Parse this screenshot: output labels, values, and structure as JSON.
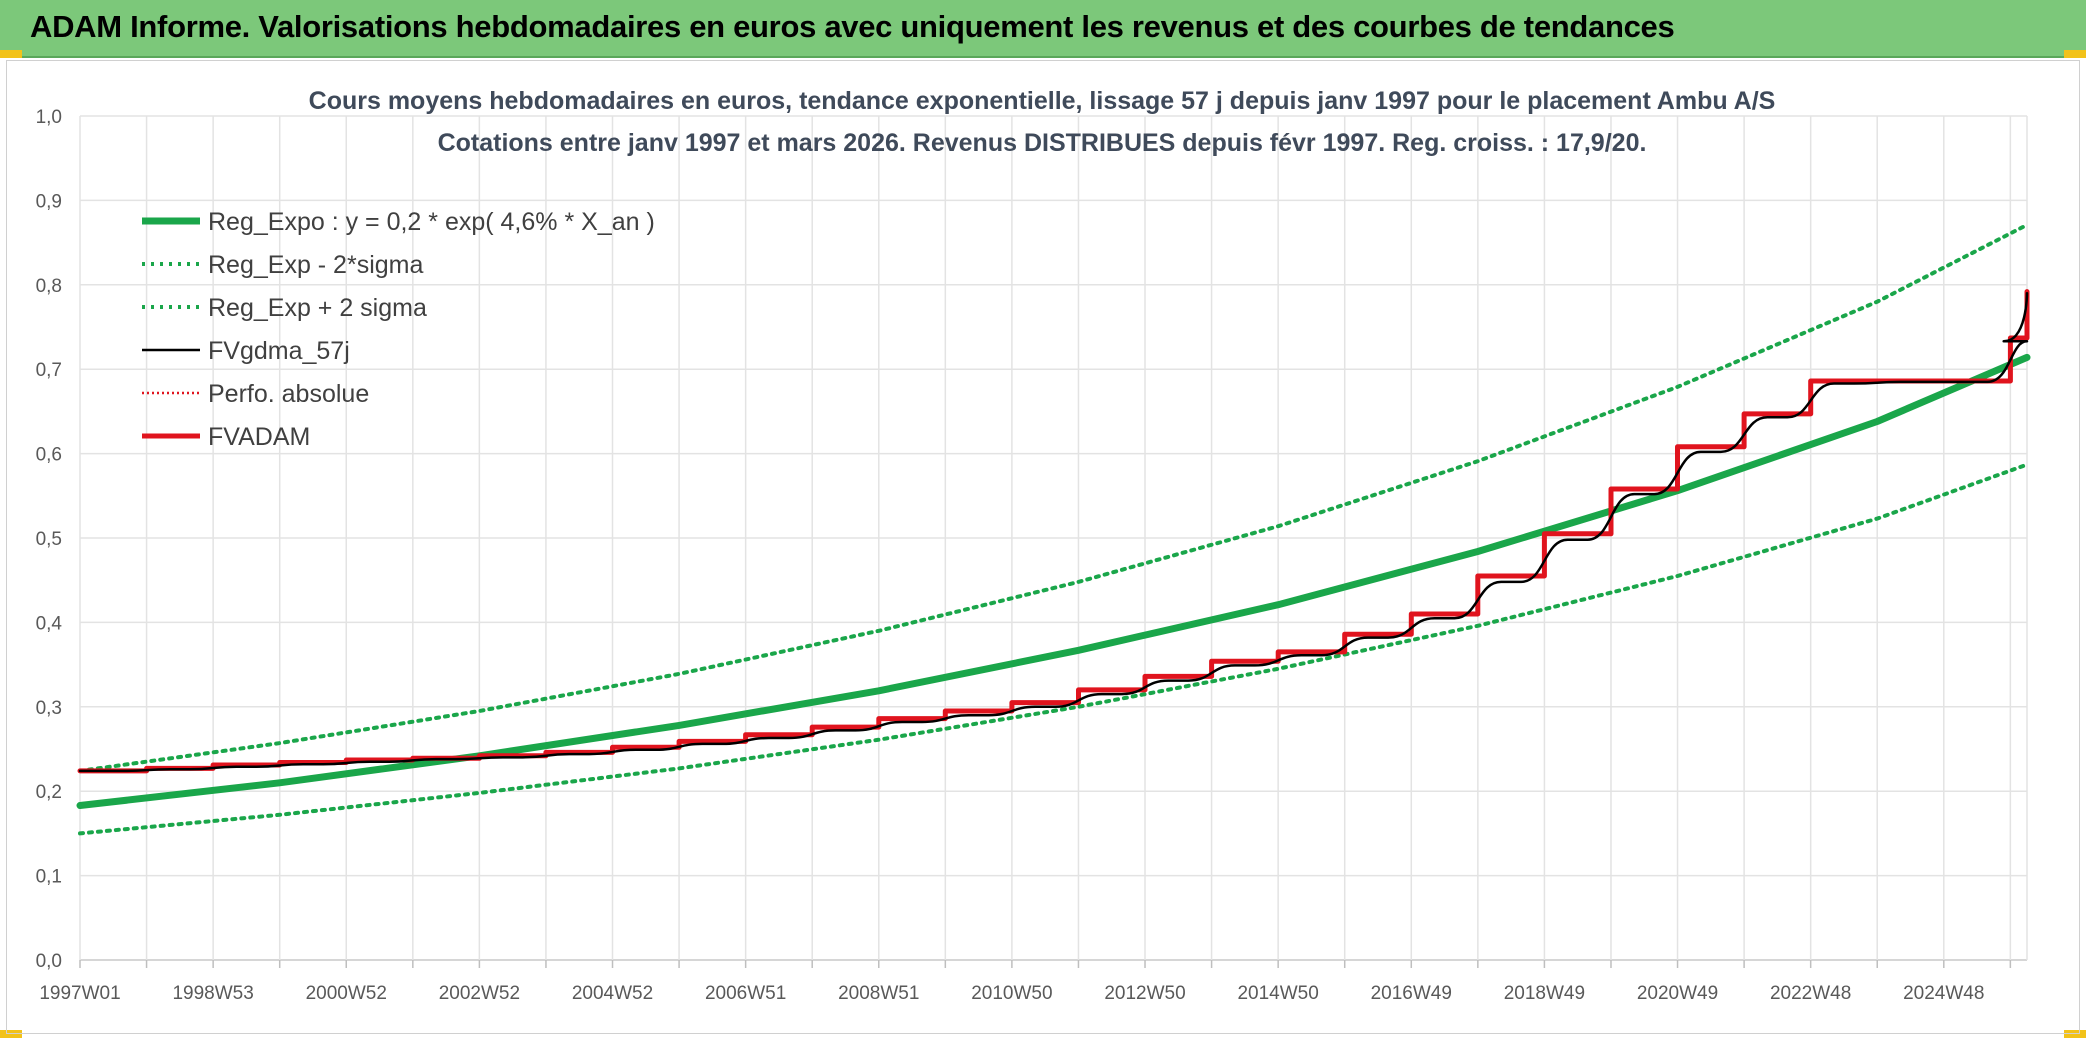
{
  "banner": {
    "title": "ADAM Informe. Valorisations hebdomadaires en euros avec uniquement les revenus et des courbes de tendances"
  },
  "chart_data": {
    "type": "line",
    "title": "Cours moyens hebdomadaires en euros, tendance exponentielle, lissage 57 j depuis janv 1997 pour le placement Ambu A/S",
    "subtitle": "Cotations entre janv 1997 et mars 2026. Revenus DISTRIBUES depuis févr 1997. Reg. croiss. : 17,9/20.",
    "xlabel": "",
    "ylabel": "",
    "ylim": [
      0,
      1
    ],
    "y_ticks": [
      "0,0",
      "0,1",
      "0,2",
      "0,3",
      "0,4",
      "0,5",
      "0,6",
      "0,7",
      "0,8",
      "0,9",
      "1,0"
    ],
    "x_range": [
      1997.0,
      2026.25
    ],
    "x_tick_labels": [
      {
        "label": "1997W01",
        "year": 1997.0
      },
      {
        "label": "1998W53",
        "year": 1999.0
      },
      {
        "label": "2000W52",
        "year": 2001.0
      },
      {
        "label": "2002W52",
        "year": 2003.0
      },
      {
        "label": "2004W52",
        "year": 2005.0
      },
      {
        "label": "2006W51",
        "year": 2007.0
      },
      {
        "label": "2008W51",
        "year": 2009.0
      },
      {
        "label": "2010W50",
        "year": 2011.0
      },
      {
        "label": "2012W50",
        "year": 2013.0
      },
      {
        "label": "2014W50",
        "year": 2015.0
      },
      {
        "label": "2016W49",
        "year": 2017.0
      },
      {
        "label": "2018W49",
        "year": 2019.0
      },
      {
        "label": "2020W49",
        "year": 2021.0
      },
      {
        "label": "2022W48",
        "year": 2023.0
      },
      {
        "label": "2024W48",
        "year": 2025.0
      }
    ],
    "grid": true,
    "legend_position": "top-left",
    "series": [
      {
        "name": "Reg_Expo : y = 0,2 * exp( 4,6% *  X_an )",
        "color": "#1aa64a",
        "style": "solid-thick",
        "x": [
          1997,
          2000,
          2003,
          2006,
          2009,
          2012,
          2015,
          2018,
          2021,
          2024,
          2026.25
        ],
        "y": [
          0.183,
          0.21,
          0.242,
          0.278,
          0.319,
          0.367,
          0.421,
          0.484,
          0.556,
          0.638,
          0.714
        ]
      },
      {
        "name": "Reg_Exp - 2*sigma",
        "color": "#1aa64a",
        "style": "dotted",
        "x": [
          1997,
          2000,
          2003,
          2006,
          2009,
          2012,
          2015,
          2018,
          2021,
          2024,
          2026.25
        ],
        "y": [
          0.15,
          0.172,
          0.198,
          0.227,
          0.261,
          0.3,
          0.345,
          0.396,
          0.455,
          0.523,
          0.587
        ]
      },
      {
        "name": "Reg_Exp + 2 sigma",
        "color": "#1aa64a",
        "style": "dotted",
        "x": [
          1997,
          2000,
          2003,
          2006,
          2009,
          2012,
          2015,
          2018,
          2021,
          2024,
          2026.25
        ],
        "y": [
          0.224,
          0.257,
          0.295,
          0.339,
          0.39,
          0.448,
          0.514,
          0.591,
          0.679,
          0.78,
          0.871
        ]
      },
      {
        "name": "FVgdma_57j",
        "color": "#000000",
        "style": "solid",
        "x": [
          1997,
          1998,
          1999,
          2000,
          2001,
          2002,
          2003,
          2004,
          2005,
          2006,
          2007,
          2008,
          2009,
          2010,
          2011,
          2012,
          2013,
          2014,
          2015,
          2016,
          2017,
          2018,
          2019,
          2020,
          2021,
          2022,
          2023,
          2024,
          2025,
          2026,
          2026.25
        ],
        "y": [
          0.224,
          0.226,
          0.229,
          0.232,
          0.235,
          0.238,
          0.24,
          0.244,
          0.249,
          0.256,
          0.263,
          0.272,
          0.282,
          0.29,
          0.3,
          0.315,
          0.331,
          0.349,
          0.361,
          0.382,
          0.405,
          0.448,
          0.498,
          0.552,
          0.602,
          0.643,
          0.683,
          0.685,
          0.685,
          0.733,
          0.79
        ]
      },
      {
        "name": "Perfo. absolue",
        "color": "#e0141e",
        "style": "dotted",
        "x": [],
        "y": []
      },
      {
        "name": "FVADAM",
        "color": "#e0141e",
        "style": "step-thick",
        "x": [
          1997,
          1998,
          1999,
          2000,
          2001,
          2002,
          2003,
          2004,
          2005,
          2006,
          2007,
          2008,
          2009,
          2010,
          2011,
          2012,
          2013,
          2014,
          2015,
          2016,
          2017,
          2018,
          2019,
          2020,
          2021,
          2022,
          2023,
          2024,
          2025,
          2026,
          2026.25
        ],
        "y": [
          0.224,
          0.227,
          0.231,
          0.234,
          0.237,
          0.239,
          0.242,
          0.246,
          0.252,
          0.259,
          0.267,
          0.276,
          0.286,
          0.295,
          0.305,
          0.32,
          0.336,
          0.354,
          0.365,
          0.386,
          0.41,
          0.455,
          0.505,
          0.558,
          0.608,
          0.647,
          0.686,
          0.686,
          0.686,
          0.737,
          0.792
        ]
      }
    ]
  }
}
